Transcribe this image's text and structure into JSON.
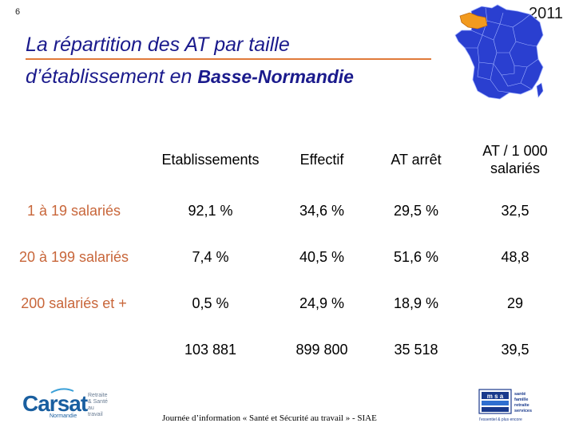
{
  "slide_number": "6",
  "year": "2011",
  "title": {
    "line1": "La répartition des AT par taille",
    "line2_prefix": "d’établissement en ",
    "line2_region": "Basse-Normandie"
  },
  "table": {
    "headers": [
      "",
      "Etablissements",
      "Effectif",
      "AT arrêt",
      "AT / 1 000 salariés"
    ],
    "rows": [
      {
        "label": "1 à 19 salariés",
        "cells": [
          "92,1 %",
          "34,6 %",
          "29,5 %",
          "32,5"
        ]
      },
      {
        "label": "20 à 199 salariés",
        "cells": [
          "7,4 %",
          "40,5 %",
          "51,6 %",
          "48,8"
        ]
      },
      {
        "label": "200 salariés et +",
        "cells": [
          "0,5 %",
          "24,9 %",
          "18,9 %",
          "29"
        ]
      },
      {
        "label": "",
        "cells": [
          "103 881",
          "899 800",
          "35 518",
          "39,5"
        ]
      }
    ]
  },
  "footer": "Journée d’information « Santé et Sécurité au travail » - SIAE",
  "logos": {
    "carsat": {
      "name": "Carsat",
      "region": "Normandie",
      "side": [
        "Retraite",
        "& Santé",
        "au travail"
      ]
    },
    "msa": {
      "side": [
        "santé",
        "famille",
        "retraite",
        "services"
      ],
      "tagline": "l'essentiel & plus encore"
    }
  },
  "colors": {
    "title": "#1a1a8c",
    "accent": "#e07a3a",
    "row_label": "#c8663a",
    "map_fill": "#2a3fd0",
    "highlight_region": "#f29a1e"
  }
}
